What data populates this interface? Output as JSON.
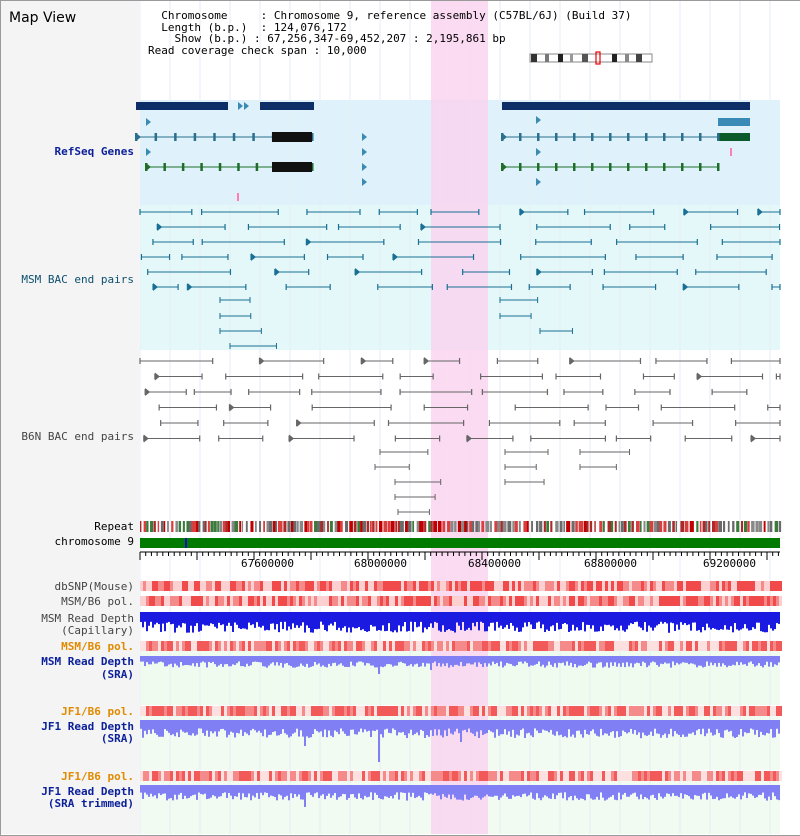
{
  "title": "Map View",
  "info": {
    "chromosome_label": "Chromosome",
    "chromosome_value": "Chromosome 9, reference assembly (C57BL/6J) (Build 37)",
    "length_label": "Length (b.p.)",
    "length_value": "124,076,172",
    "show_label": "Show (b.p.)",
    "show_value": "67,256,347-69,452,207 : 2,195,861 bp",
    "span_label": "Read coverage check span",
    "span_value": "10,000"
  },
  "tracks": {
    "refseq": "RefSeq Genes",
    "msm_bac": "MSM BAC end pairs",
    "b6n_bac": "B6N BAC end pairs",
    "repeat": "Repeat",
    "chromosome": "chromosome 9",
    "dbsnp": "dbSNP(Mouse)",
    "msm_b6_pol": "MSM/B6 pol.",
    "msm_depth_cap_1": "MSM Read Depth",
    "msm_depth_cap_2": "(Capillary)",
    "msm_b6_pol_sra": "MSM/B6 pol.",
    "msm_depth_sra_1": "MSM Read Depth",
    "msm_depth_sra_2": "(SRA)",
    "jf1_b6_pol": "JF1/B6 pol.",
    "jf1_depth_sra_1": "JF1 Read Depth",
    "jf1_depth_sra_2": "(SRA)",
    "jf1_b6_pol_trim": "JF1/B6 pol.",
    "jf1_depth_trim_1": "JF1 Read Depth",
    "jf1_depth_trim_2": "(SRA trimmed)"
  },
  "axis": {
    "ticks": [
      "67600000",
      "68000000",
      "68400000",
      "68800000",
      "69200000"
    ]
  },
  "colors": {
    "refseq_bg": "#dff1fb",
    "msm_bg": "#e4f8fa",
    "highlight": "#f9d5f0",
    "chromosome": "#007a00",
    "depth_capillary": "#1a1ae0",
    "depth_sra": "#8080f4",
    "pol_red": "#f05050"
  }
}
